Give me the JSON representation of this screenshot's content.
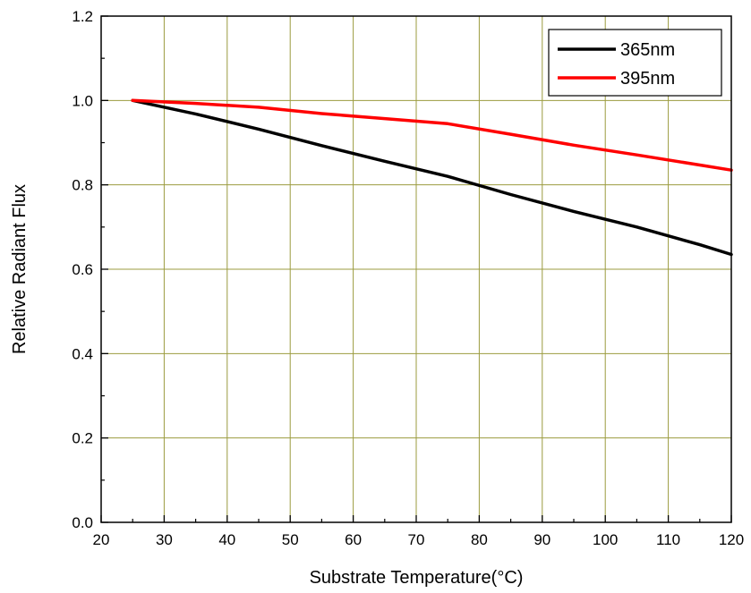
{
  "chart_data": {
    "type": "line",
    "xlabel": "Substrate Temperature(°C)",
    "ylabel": "Relative Radiant Flux",
    "xlim": [
      20,
      120
    ],
    "ylim": [
      0.0,
      1.2
    ],
    "x_ticks": [
      "20",
      "30",
      "40",
      "50",
      "60",
      "70",
      "80",
      "90",
      "100",
      "110",
      "120"
    ],
    "y_ticks": [
      "0.0",
      "0.2",
      "0.4",
      "0.6",
      "0.8",
      "1.0",
      "1.2"
    ],
    "grid": true,
    "grid_color": "#9b9b3f",
    "legend_position": "top-right",
    "series": [
      {
        "name": "365nm",
        "color": "#000000",
        "x": [
          25,
          35,
          45,
          55,
          65,
          75,
          85,
          95,
          105,
          115,
          120
        ],
        "y": [
          1.0,
          0.968,
          0.932,
          0.893,
          0.856,
          0.82,
          0.777,
          0.737,
          0.7,
          0.658,
          0.635
        ]
      },
      {
        "name": "395nm",
        "color": "#ff0000",
        "x": [
          25,
          35,
          45,
          55,
          65,
          75,
          85,
          95,
          105,
          115,
          120
        ],
        "y": [
          1.0,
          0.993,
          0.984,
          0.969,
          0.957,
          0.945,
          0.92,
          0.894,
          0.871,
          0.847,
          0.835
        ]
      }
    ]
  }
}
